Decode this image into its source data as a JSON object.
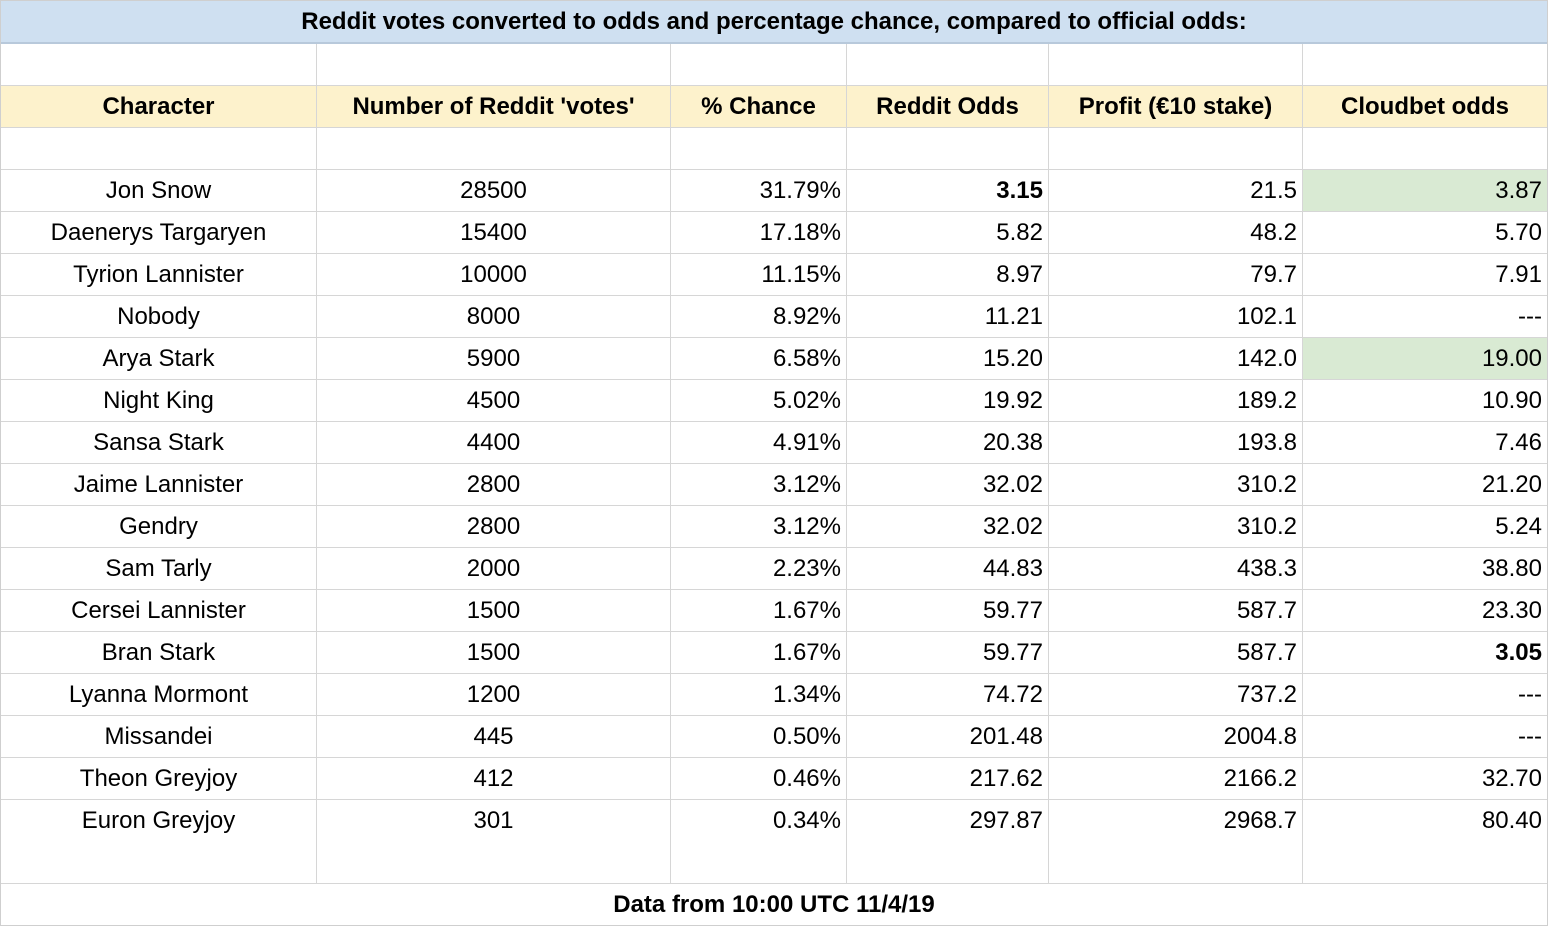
{
  "title": "Reddit votes converted to odds and percentage chance, compared to official odds:",
  "headers": [
    "Character",
    "Number of Reddit 'votes'",
    "% Chance",
    "Reddit Odds",
    "Profit (€10 stake)",
    "Cloudbet odds"
  ],
  "rows": [
    {
      "character": "Jon Snow",
      "votes": "28500",
      "chance": "31.79%",
      "reddit_odds": "3.15",
      "profit": "21.5",
      "cloudbet": "3.87"
    },
    {
      "character": "Daenerys Targaryen",
      "votes": "15400",
      "chance": "17.18%",
      "reddit_odds": "5.82",
      "profit": "48.2",
      "cloudbet": "5.70"
    },
    {
      "character": "Tyrion Lannister",
      "votes": "10000",
      "chance": "11.15%",
      "reddit_odds": "8.97",
      "profit": "79.7",
      "cloudbet": "7.91"
    },
    {
      "character": "Nobody",
      "votes": "8000",
      "chance": "8.92%",
      "reddit_odds": "11.21",
      "profit": "102.1",
      "cloudbet": "---"
    },
    {
      "character": "Arya Stark",
      "votes": "5900",
      "chance": "6.58%",
      "reddit_odds": "15.20",
      "profit": "142.0",
      "cloudbet": "19.00"
    },
    {
      "character": "Night King",
      "votes": "4500",
      "chance": "5.02%",
      "reddit_odds": "19.92",
      "profit": "189.2",
      "cloudbet": "10.90"
    },
    {
      "character": "Sansa Stark",
      "votes": "4400",
      "chance": "4.91%",
      "reddit_odds": "20.38",
      "profit": "193.8",
      "cloudbet": "7.46"
    },
    {
      "character": "Jaime Lannister",
      "votes": "2800",
      "chance": "3.12%",
      "reddit_odds": "32.02",
      "profit": "310.2",
      "cloudbet": "21.20"
    },
    {
      "character": "Gendry",
      "votes": "2800",
      "chance": "3.12%",
      "reddit_odds": "32.02",
      "profit": "310.2",
      "cloudbet": "5.24"
    },
    {
      "character": "Sam Tarly",
      "votes": "2000",
      "chance": "2.23%",
      "reddit_odds": "44.83",
      "profit": "438.3",
      "cloudbet": "38.80"
    },
    {
      "character": "Cersei Lannister",
      "votes": "1500",
      "chance": "1.67%",
      "reddit_odds": "59.77",
      "profit": "587.7",
      "cloudbet": "23.30"
    },
    {
      "character": "Bran Stark",
      "votes": "1500",
      "chance": "1.67%",
      "reddit_odds": "59.77",
      "profit": "587.7",
      "cloudbet": "3.05"
    },
    {
      "character": "Lyanna Mormont",
      "votes": "1200",
      "chance": "1.34%",
      "reddit_odds": "74.72",
      "profit": "737.2",
      "cloudbet": "---"
    },
    {
      "character": "Missandei",
      "votes": "445",
      "chance": "0.50%",
      "reddit_odds": "201.48",
      "profit": "2004.8",
      "cloudbet": "---"
    },
    {
      "character": "Theon Greyjoy",
      "votes": "412",
      "chance": "0.46%",
      "reddit_odds": "217.62",
      "profit": "2166.2",
      "cloudbet": "32.70"
    },
    {
      "character": "Euron Greyjoy",
      "votes": "301",
      "chance": "0.34%",
      "reddit_odds": "297.87",
      "profit": "2968.7",
      "cloudbet": "80.40"
    }
  ],
  "footer": "Data from 10:00 UTC 11/4/19",
  "colors": {
    "title_bg": "#cfe0f1",
    "header_bg": "#fdf2cc",
    "highlight_bg": "#d9ead3",
    "stripe_bg": "#f3f3f3"
  }
}
